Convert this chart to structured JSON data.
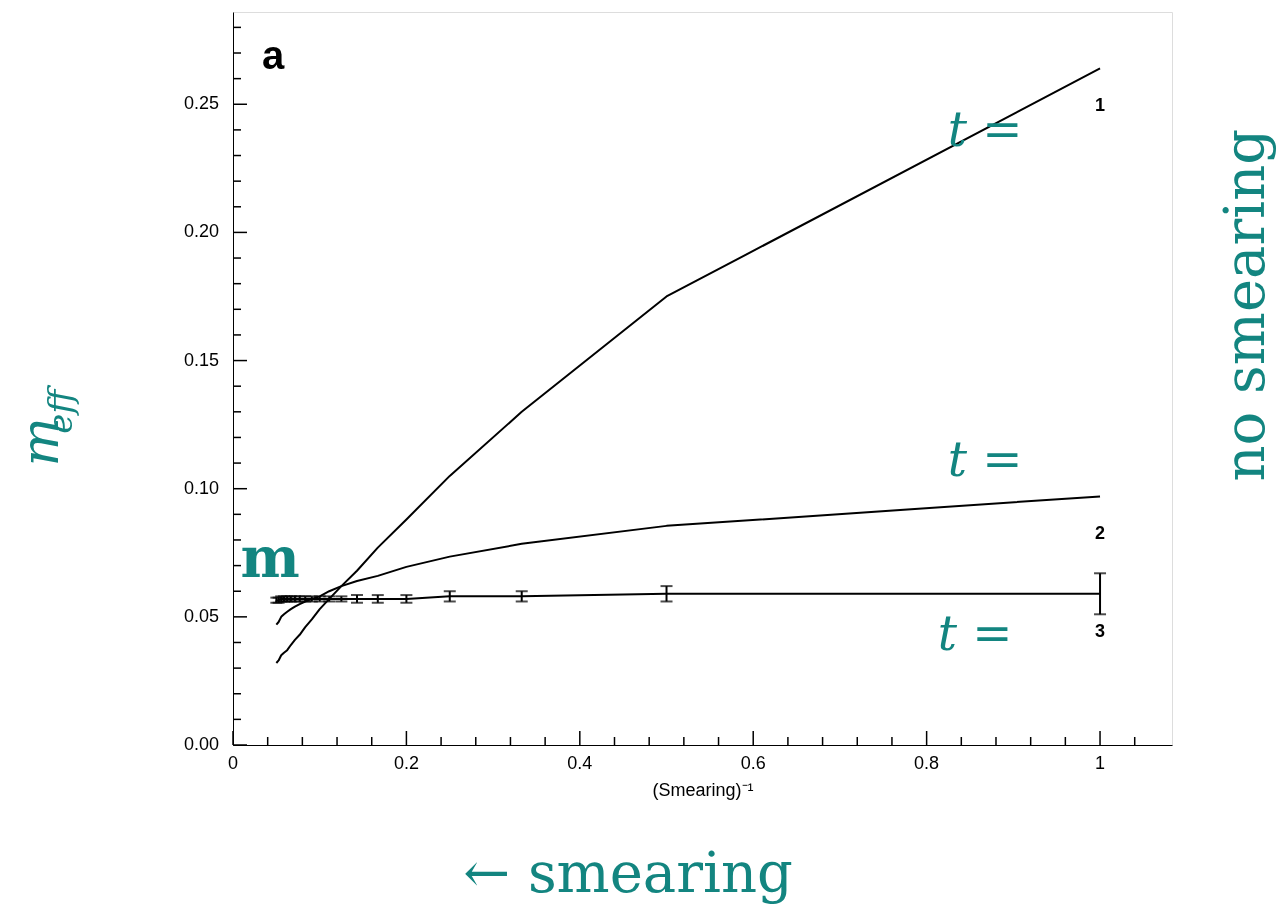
{
  "chart_data": {
    "type": "line",
    "xlabel": "(Smearing)⁻¹",
    "ylabel": "m$_{eff}$",
    "xlim": [
      0,
      1.083
    ],
    "ylim": [
      0,
      0.286
    ],
    "xticks": [
      0,
      {
        "value": 0.04,
        "label": null
      },
      {
        "value": 0.08,
        "label": null
      },
      {
        "value": 0.12,
        "label": null
      },
      {
        "value": 0.16,
        "label": null
      },
      0.2,
      {
        "value": 0.24,
        "label": null
      },
      {
        "value": 0.28,
        "label": null
      },
      {
        "value": 0.32,
        "label": null
      },
      {
        "value": 0.36,
        "label": null
      },
      0.4,
      {
        "value": 0.44,
        "label": null
      },
      {
        "value": 0.48,
        "label": null
      },
      {
        "value": 0.52,
        "label": null
      },
      {
        "value": 0.56,
        "label": null
      },
      0.6,
      {
        "value": 0.64,
        "label": null
      },
      {
        "value": 0.68,
        "label": null
      },
      {
        "value": 0.72,
        "label": null
      },
      {
        "value": 0.76,
        "label": null
      },
      0.8,
      {
        "value": 0.84,
        "label": null
      },
      {
        "value": 0.88,
        "label": null
      },
      {
        "value": 0.92,
        "label": null
      },
      {
        "value": 0.96,
        "label": null
      },
      1,
      {
        "value": 1.04,
        "label": null
      }
    ],
    "yticks": [
      {
        "value": 0,
        "label": "0.00"
      },
      {
        "value": 0.01,
        "label": null
      },
      {
        "value": 0.02,
        "label": null
      },
      {
        "value": 0.03,
        "label": null
      },
      {
        "value": 0.04,
        "label": null
      },
      {
        "value": 0.05,
        "label": "0.05"
      },
      {
        "value": 0.06,
        "label": null
      },
      {
        "value": 0.07,
        "label": null
      },
      {
        "value": 0.08,
        "label": null
      },
      {
        "value": 0.09,
        "label": null
      },
      {
        "value": 0.1,
        "label": "0.10"
      },
      {
        "value": 0.11,
        "label": null
      },
      {
        "value": 0.12,
        "label": null
      },
      {
        "value": 0.13,
        "label": null
      },
      {
        "value": 0.14,
        "label": null
      },
      {
        "value": 0.15,
        "label": "0.15"
      },
      {
        "value": 0.16,
        "label": null
      },
      {
        "value": 0.17,
        "label": null
      },
      {
        "value": 0.18,
        "label": null
      },
      {
        "value": 0.19,
        "label": null
      },
      {
        "value": 0.2,
        "label": "0.20"
      },
      {
        "value": 0.21,
        "label": null
      },
      {
        "value": 0.22,
        "label": null
      },
      {
        "value": 0.23,
        "label": null
      },
      {
        "value": 0.24,
        "label": null
      },
      {
        "value": 0.25,
        "label": "0.25"
      },
      {
        "value": 0.26,
        "label": null
      },
      {
        "value": 0.27,
        "label": null
      },
      {
        "value": 0.28,
        "label": null
      }
    ],
    "x": [
      1,
      0.5,
      0.333,
      0.25,
      0.2,
      0.167,
      0.143,
      0.125,
      0.111,
      0.1,
      0.0909,
      0.0833,
      0.0769,
      0.0714,
      0.0667,
      0.0625,
      0.0588,
      0.0556,
      0.0526,
      0.05
    ],
    "series": [
      {
        "name": "1",
        "color": "#000000",
        "values": [
          0.264,
          0.175,
          0.13,
          0.105,
          0.088,
          0.077,
          0.068,
          0.062,
          0.057,
          0.053,
          0.049,
          0.046,
          0.043,
          0.041,
          0.039,
          0.037,
          0.036,
          0.035,
          0.033,
          0.032
        ]
      },
      {
        "name": "2",
        "color": "#000000",
        "values": [
          0.097,
          0.0855,
          0.0785,
          0.0735,
          0.0695,
          0.066,
          0.064,
          0.062,
          0.06,
          0.058,
          0.057,
          0.056,
          0.055,
          0.054,
          0.053,
          0.052,
          0.051,
          0.05,
          0.048,
          0.047
        ]
      },
      {
        "name": "3",
        "color": "#000000",
        "values": [
          0.059,
          0.059,
          0.058,
          0.058,
          0.057,
          0.057,
          0.057,
          0.057,
          0.057,
          0.057,
          0.057,
          0.057,
          0.057,
          0.057,
          0.057,
          0.057,
          0.057,
          0.057,
          0.0565,
          0.0565
        ],
        "errors": [
          0.008,
          0.003,
          0.002,
          0.002,
          0.0015,
          0.0015,
          0.0015,
          0.001,
          0.001,
          0.001,
          0.001,
          0.001,
          0.001,
          0.001,
          0.001,
          0.001,
          0.001,
          0.001,
          0.001,
          0.001
        ]
      }
    ],
    "annotations": [
      "a",
      "no smearing",
      "← smearing",
      "m",
      "t =",
      "t =",
      "t ="
    ],
    "grid": false,
    "marker": "none",
    "line_style": "solid"
  }
}
